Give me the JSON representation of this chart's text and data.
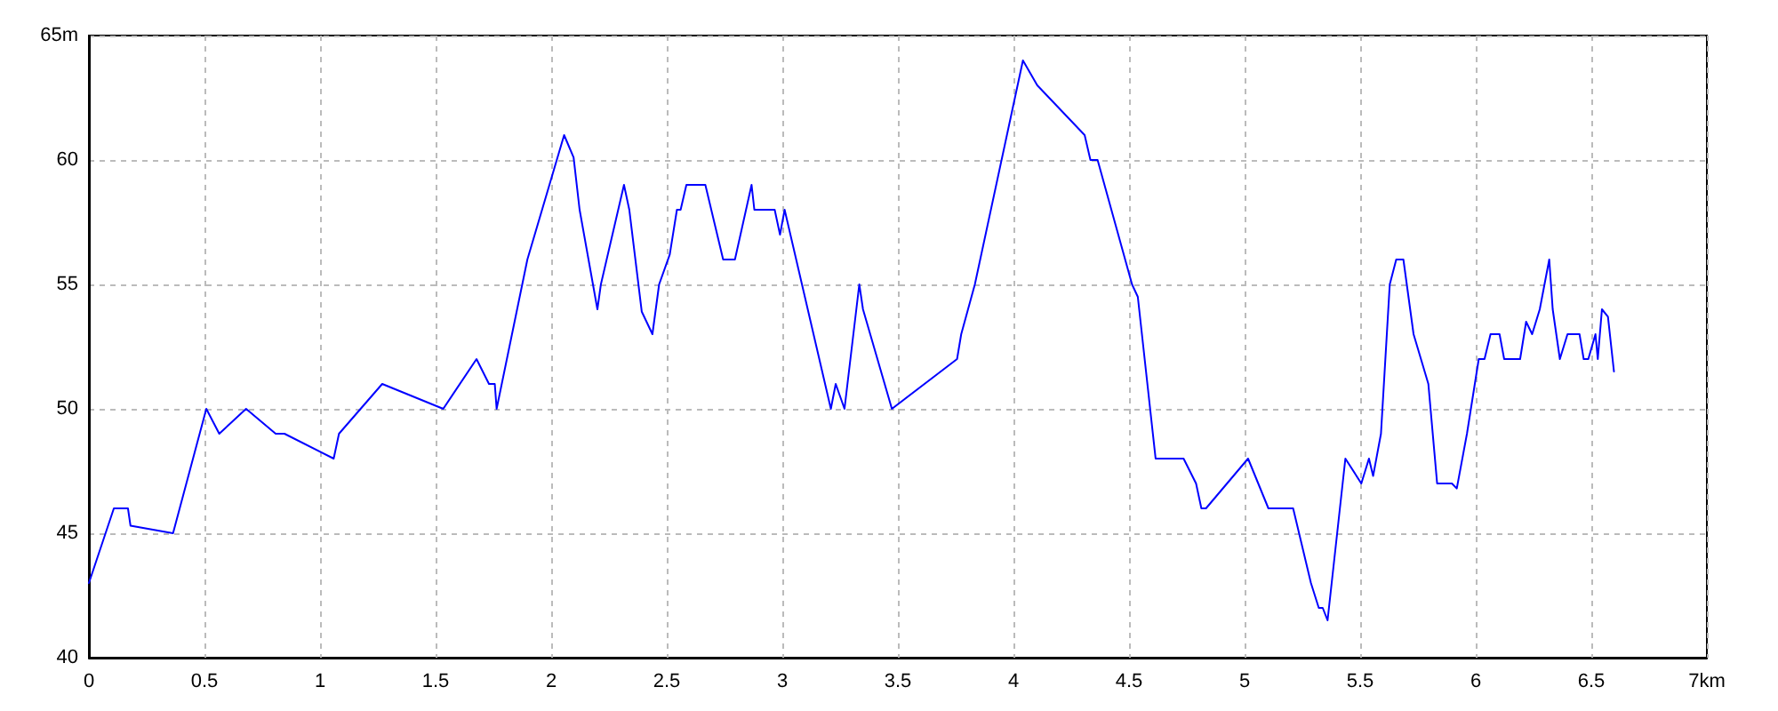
{
  "chart_data": {
    "type": "line",
    "color": "#0000ff",
    "marker": "none",
    "line_style": "solid",
    "grid": true,
    "xlim": [
      0,
      7
    ],
    "ylim": [
      40,
      65
    ],
    "xticks": [
      0,
      0.5,
      1,
      1.5,
      2,
      2.5,
      3,
      3.5,
      4,
      4.5,
      5,
      5.5,
      6,
      6.5,
      {
        "value": 7,
        "label": "7km"
      }
    ],
    "yticks": [
      40,
      45,
      50,
      55,
      60,
      {
        "value": 65,
        "label": "65m"
      }
    ],
    "x": [
      0,
      0.108,
      0.169,
      0.18,
      0.364,
      0.508,
      0.564,
      0.68,
      0.808,
      0.846,
      1.059,
      1.082,
      1.269,
      1.533,
      1.677,
      1.731,
      1.756,
      1.764,
      1.897,
      2.056,
      2.097,
      2.123,
      2.2,
      2.215,
      2.315,
      2.338,
      2.392,
      2.438,
      2.467,
      2.513,
      2.544,
      2.56,
      2.585,
      2.667,
      2.744,
      2.795,
      2.867,
      2.879,
      2.967,
      2.99,
      3.01,
      3.21,
      3.231,
      3.269,
      3.333,
      3.349,
      3.474,
      3.756,
      3.774,
      3.833,
      4.041,
      4.103,
      4.308,
      4.333,
      4.364,
      4.513,
      4.538,
      4.615,
      4.736,
      4.79,
      4.813,
      4.833,
      5.015,
      5.103,
      5.21,
      5.287,
      5.321,
      5.338,
      5.359,
      5.436,
      5.505,
      5.538,
      5.556,
      5.59,
      5.628,
      5.656,
      5.687,
      5.731,
      5.795,
      5.833,
      5.897,
      5.918,
      5.962,
      6.013,
      6.038,
      6.064,
      6.103,
      6.123,
      6.192,
      6.218,
      6.244,
      6.277,
      6.318,
      6.333,
      6.364,
      6.397,
      6.449,
      6.467,
      6.487,
      6.518,
      6.528,
      6.546,
      6.572,
      6.598
    ],
    "values": [
      43,
      46,
      46,
      45.3,
      45,
      50,
      49,
      50,
      49,
      49,
      48,
      49,
      51,
      50,
      52,
      51,
      51,
      50,
      56,
      61,
      60.1,
      58,
      54,
      55,
      59,
      58,
      53.9,
      53,
      55,
      56.2,
      58,
      58,
      59,
      59,
      56,
      56,
      59,
      58,
      58,
      57,
      58,
      50,
      51,
      50,
      55,
      54,
      50,
      52,
      53,
      55,
      64,
      63,
      61,
      60,
      60,
      55,
      54.5,
      48,
      48,
      47,
      46,
      46,
      48,
      46,
      46,
      43,
      42,
      42,
      41.5,
      48,
      47,
      48,
      47.3,
      49,
      55,
      56,
      56,
      53,
      51,
      47,
      47,
      46.8,
      49,
      52,
      52,
      53,
      53,
      52,
      52,
      53.5,
      53,
      54,
      56,
      54,
      52,
      53,
      53,
      52,
      52,
      53,
      52,
      54,
      53.7,
      51.5
    ]
  }
}
